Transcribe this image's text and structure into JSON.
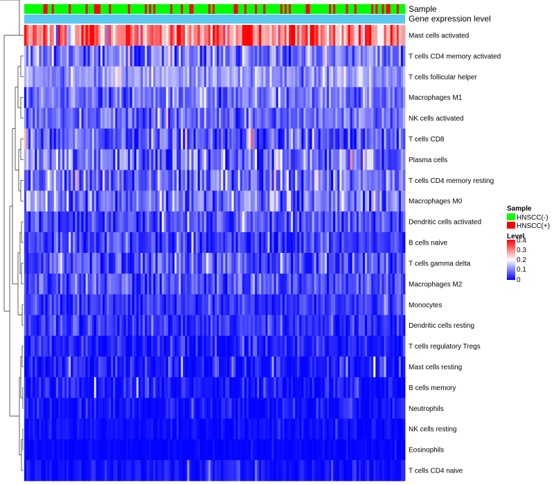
{
  "chart_data": {
    "type": "heatmap",
    "title": "",
    "annotations": {
      "sample_label": "Sample",
      "gene_label": "Gene expression level",
      "sample_colors": {
        "HNSCC(-)": "#00ff00",
        "HNSCC(+)": "#ff0000"
      },
      "gene_bar_color": "#5bc8f0"
    },
    "rows": [
      {
        "name": "Mast cells activated",
        "mean": 0.3,
        "spread": 0.1
      },
      {
        "name": "T cells CD4 memory activated",
        "mean": 0.09,
        "spread": 0.07
      },
      {
        "name": "T cells follicular helper",
        "mean": 0.12,
        "spread": 0.05
      },
      {
        "name": "Macrophages M1",
        "mean": 0.09,
        "spread": 0.05
      },
      {
        "name": "NK cells activated",
        "mean": 0.08,
        "spread": 0.05
      },
      {
        "name": "T cells CD8",
        "mean": 0.07,
        "spread": 0.07
      },
      {
        "name": "Plasma cells",
        "mean": 0.08,
        "spread": 0.08
      },
      {
        "name": "T cells CD4 memory resting",
        "mean": 0.08,
        "spread": 0.07
      },
      {
        "name": "Macrophages M0",
        "mean": 0.1,
        "spread": 0.08
      },
      {
        "name": "Dendritic cells activated",
        "mean": 0.06,
        "spread": 0.05
      },
      {
        "name": "B cells naive",
        "mean": 0.05,
        "spread": 0.05
      },
      {
        "name": "T cells gamma delta",
        "mean": 0.06,
        "spread": 0.06
      },
      {
        "name": "Macrophages M2",
        "mean": 0.06,
        "spread": 0.05
      },
      {
        "name": "Monocytes",
        "mean": 0.04,
        "spread": 0.04
      },
      {
        "name": "Dendritic cells resting",
        "mean": 0.04,
        "spread": 0.04
      },
      {
        "name": "T cells regulatory  Tregs",
        "mean": 0.02,
        "spread": 0.04
      },
      {
        "name": "Mast cells resting",
        "mean": 0.015,
        "spread": 0.05
      },
      {
        "name": "B cells memory",
        "mean": 0.015,
        "spread": 0.04
      },
      {
        "name": "Neutrophils",
        "mean": 0.01,
        "spread": 0.03
      },
      {
        "name": "NK cells resting",
        "mean": 0.008,
        "spread": 0.02
      },
      {
        "name": "Eosinophils",
        "mean": 0.003,
        "spread": 0.01
      },
      {
        "name": "T cells CD4 naive",
        "mean": 0.01,
        "spread": 0.03
      }
    ],
    "n_samples": 180,
    "hnscc_positive_fraction": 0.22,
    "color_scale": {
      "min": 0,
      "max": 0.4,
      "colors": [
        "#0000ff",
        "#ffffff",
        "#ff0000"
      ]
    },
    "legend": {
      "sample_title": "Sample",
      "sample_items": [
        "HNSCC(-)",
        "HNSCC(+)"
      ],
      "level_title": "Level",
      "level_ticks": [
        "0.4",
        "0.3",
        "0.2",
        "0.1",
        "0"
      ]
    }
  }
}
